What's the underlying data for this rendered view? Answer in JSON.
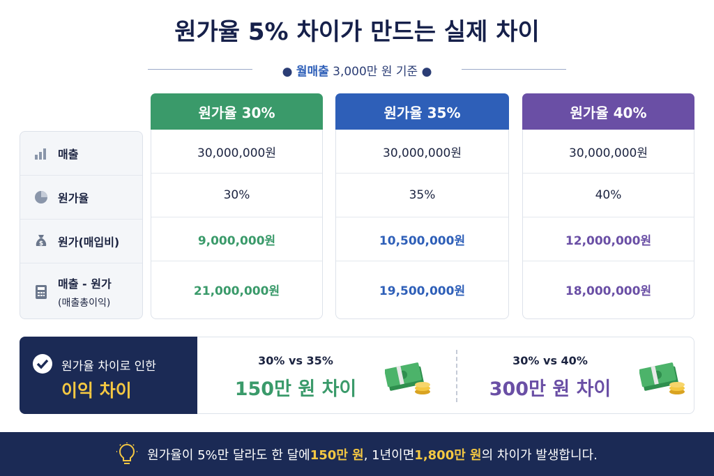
{
  "header": {
    "title": "원가율 5% 차이가 만드는 실제 차이",
    "subtitle_bold": "월매출",
    "subtitle": "3,000만 원 기준"
  },
  "table": {
    "columns": [
      "원가율 30%",
      "원가율 35%",
      "원가율 40%"
    ],
    "rows": [
      {
        "label": "매출",
        "values": [
          "30,000,000원",
          "30,000,000원",
          "30,000,000원"
        ]
      },
      {
        "label": "원가율",
        "values": [
          "30%",
          "35%",
          "40%"
        ]
      },
      {
        "label": "원가(매입비)",
        "values": [
          "9,000,000원",
          "10,500,000원",
          "12,000,000원"
        ]
      },
      {
        "label": "매출 - 원가",
        "sublabel": "(매출총이익)",
        "values": [
          "21,000,000원",
          "19,500,000원",
          "18,000,000원"
        ]
      }
    ]
  },
  "summary": {
    "label": "원가율 차이로 인한",
    "highlight": "이익 차이",
    "comparisons": [
      {
        "title": "30% vs 35%",
        "value": "150만 원 차이"
      },
      {
        "title": "30% vs 40%",
        "value": "300만 원 차이"
      }
    ]
  },
  "footer": {
    "segments": [
      "원가율이 5%만 달라도 한 달에 ",
      "150만 원",
      ", 1년이면 ",
      "1,800만 원",
      "의 차이가 발생합니다."
    ]
  }
}
